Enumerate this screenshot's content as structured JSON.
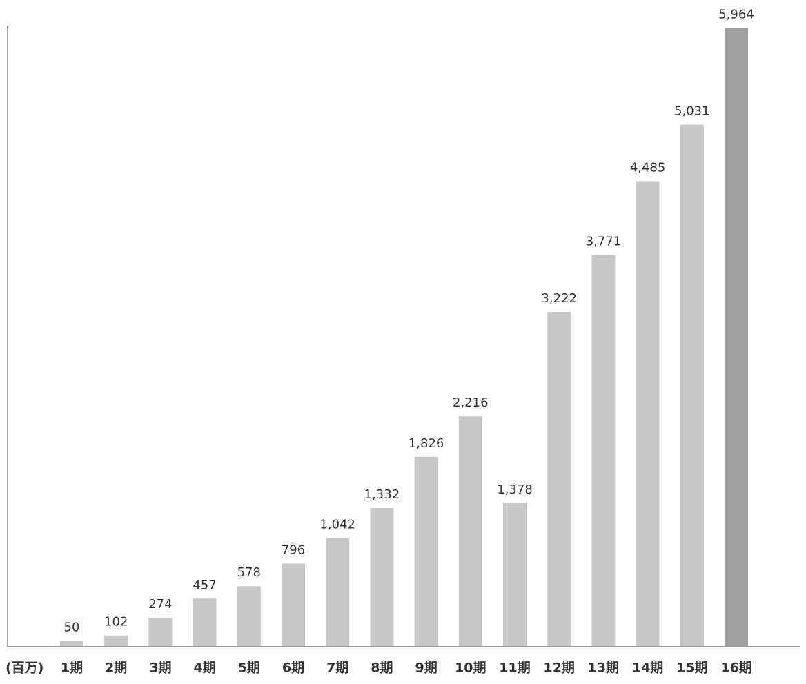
{
  "chart_data": {
    "type": "bar",
    "unit_label": "(百万)",
    "categories": [
      "1期",
      "2期",
      "3期",
      "4期",
      "5期",
      "6期",
      "7期",
      "8期",
      "9期",
      "10期",
      "11期",
      "12期",
      "13期",
      "14期",
      "15期",
      "16期"
    ],
    "values": [
      50,
      102,
      274,
      457,
      578,
      796,
      1042,
      1332,
      1826,
      2216,
      1378,
      3222,
      3771,
      4485,
      5031,
      5964
    ],
    "value_labels": [
      "50",
      "102",
      "274",
      "457",
      "578",
      "796",
      "1,042",
      "1,332",
      "1,826",
      "2,216",
      "1,378",
      "3,222",
      "3,771",
      "4,485",
      "5,031",
      "5,964"
    ],
    "colors": [
      "#c8c8c8",
      "#c8c8c8",
      "#c8c8c8",
      "#c8c8c8",
      "#c8c8c8",
      "#c8c8c8",
      "#c8c8c8",
      "#c8c8c8",
      "#c8c8c8",
      "#c8c8c8",
      "#c8c8c8",
      "#c8c8c8",
      "#c8c8c8",
      "#c8c8c8",
      "#c8c8c8",
      "#a0a0a0"
    ],
    "ylim": [
      0,
      6000
    ],
    "grid": false
  }
}
